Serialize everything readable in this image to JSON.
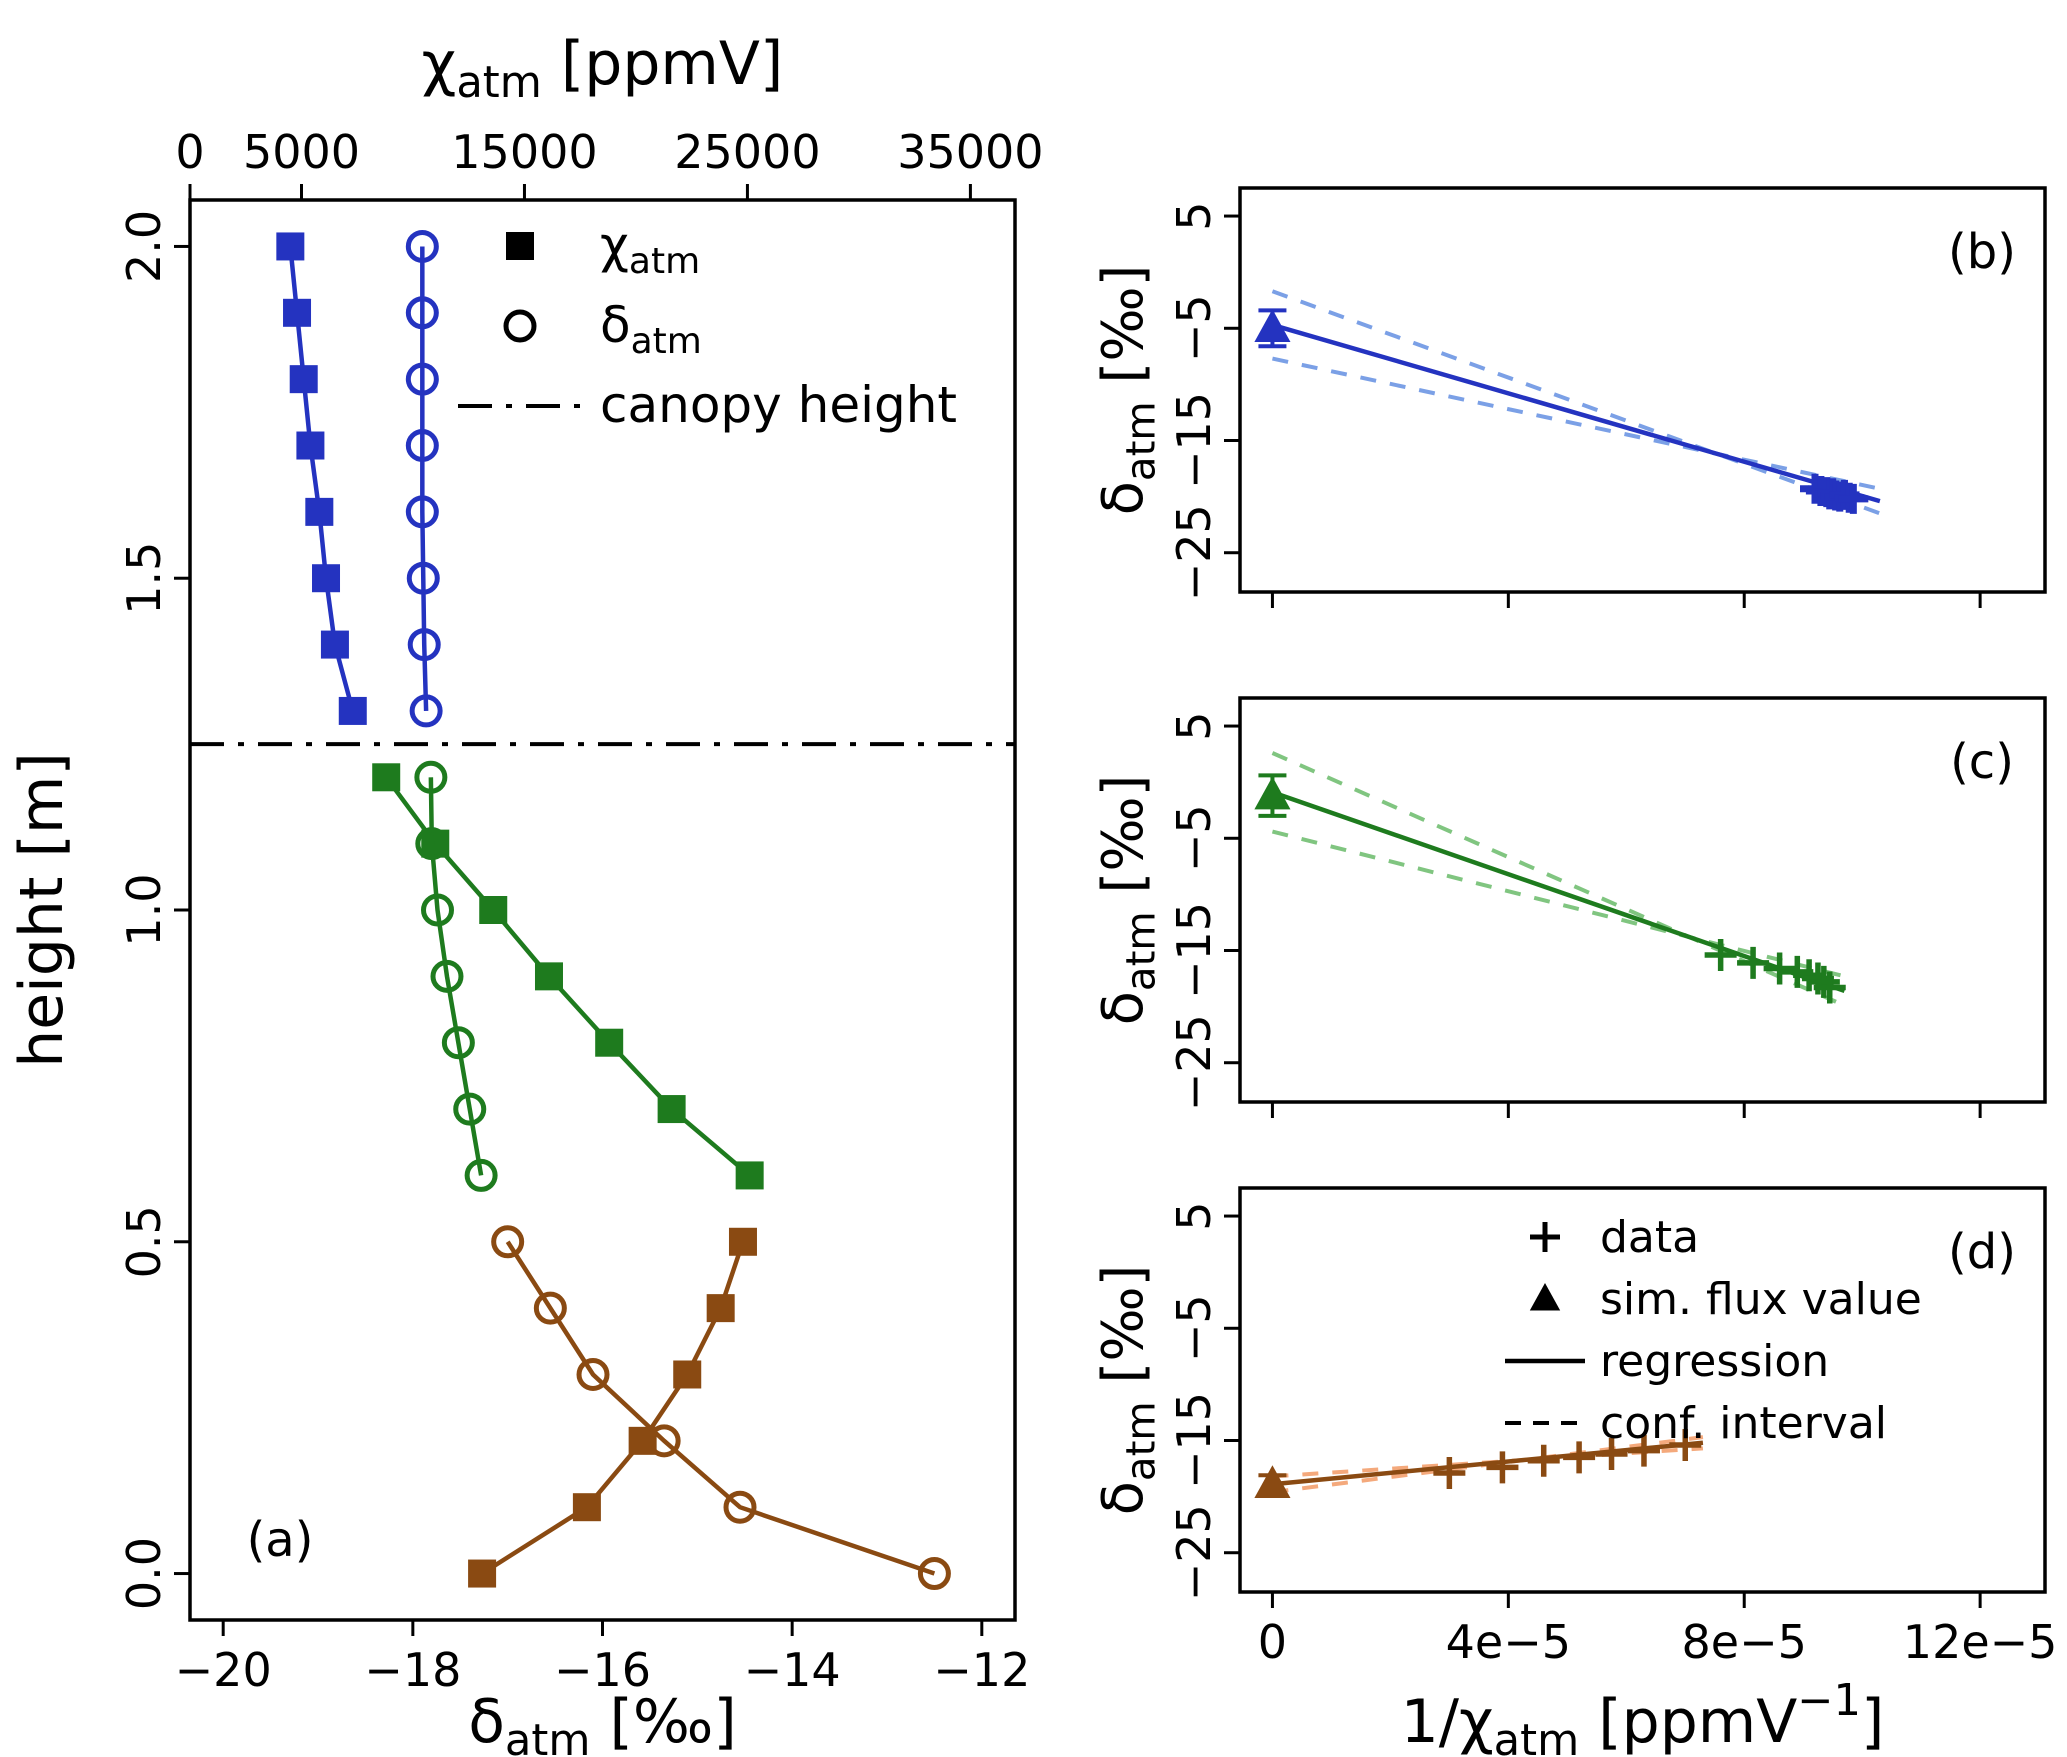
{
  "figure": {
    "background": "#ffffff",
    "colors": {
      "blue": "#2433c0",
      "blue_light": "#7ba0e6",
      "green": "#1e7b1e",
      "green_light": "#80c580",
      "brown": "#8a4a12",
      "brown_light": "#f4a97c",
      "black": "#000000"
    }
  },
  "right_axes": {
    "xlabel": [
      {
        "t": "1/"
      },
      {
        "t": "χ"
      },
      {
        "t": "atm",
        "sub": true
      },
      {
        "t": " [ppmV"
      },
      {
        "t": "−1",
        "sup": true
      },
      {
        "t": "]"
      }
    ],
    "ylabel": [
      {
        "t": "δ"
      },
      {
        "t": "atm",
        "sub": true
      },
      {
        "t": " [‰]"
      }
    ],
    "x_ticks": [
      {
        "v": 0,
        "label": "0"
      },
      {
        "v": 4e-05,
        "label": "4e−5"
      },
      {
        "v": 8e-05,
        "label": "8e−5"
      },
      {
        "v": 0.00012,
        "label": "12e−5"
      }
    ],
    "y_ticks": [
      {
        "v": 5,
        "label": "5"
      },
      {
        "v": -5,
        "label": "−5"
      },
      {
        "v": -15,
        "label": "−15"
      },
      {
        "v": -25,
        "label": "−25"
      }
    ],
    "x_range": [
      -5.5e-06,
      0.000131
    ],
    "y_range": [
      -28.5,
      7.5
    ]
  },
  "chart_data": [
    {
      "id": "a",
      "type": "line",
      "panel_label": "(a)",
      "ylabel": "height [m]",
      "xlabel_top": [
        {
          "t": "χ"
        },
        {
          "t": "atm",
          "sub": true
        },
        {
          "t": " [ppmV]"
        }
      ],
      "xlabel_bottom": [
        {
          "t": "δ"
        },
        {
          "t": "atm",
          "sub": true
        },
        {
          "t": " [‰]"
        }
      ],
      "y_ticks": [
        {
          "v": 0.0,
          "label": "0.0"
        },
        {
          "v": 0.5,
          "label": "0.5"
        },
        {
          "v": 1.0,
          "label": "1.0"
        },
        {
          "v": 1.5,
          "label": "1.5"
        },
        {
          "v": 2.0,
          "label": "2.0"
        }
      ],
      "x_top_ticks": [
        {
          "v": 0,
          "label": "0"
        },
        {
          "v": 5000,
          "label": "5000"
        },
        {
          "v": 15000,
          "label": "15000"
        },
        {
          "v": 25000,
          "label": "25000"
        },
        {
          "v": 35000,
          "label": "35000"
        }
      ],
      "x_bottom_ticks": [
        {
          "v": -20,
          "label": "−20"
        },
        {
          "v": -18,
          "label": "−18"
        },
        {
          "v": -16,
          "label": "−16"
        },
        {
          "v": -14,
          "label": "−14"
        },
        {
          "v": -12,
          "label": "−12"
        }
      ],
      "x_top_range": [
        0,
        37000
      ],
      "x_bottom_range": [
        -20.35,
        -11.65
      ],
      "y_range": [
        -0.07,
        2.07
      ],
      "canopy_height": 1.25,
      "series": [
        {
          "name": "chi-above-canopy",
          "axis": "top",
          "color": "blue",
          "marker": "square",
          "points": [
            {
              "h": 2.0,
              "v": 4500
            },
            {
              "h": 1.9,
              "v": 4800
            },
            {
              "h": 1.8,
              "v": 5100
            },
            {
              "h": 1.7,
              "v": 5400
            },
            {
              "h": 1.6,
              "v": 5800
            },
            {
              "h": 1.5,
              "v": 6100
            },
            {
              "h": 1.4,
              "v": 6500
            },
            {
              "h": 1.3,
              "v": 7300
            }
          ]
        },
        {
          "name": "delta-above-canopy",
          "axis": "bottom",
          "color": "blue",
          "marker": "circle",
          "points": [
            {
              "h": 2.0,
              "v": -17.9
            },
            {
              "h": 1.9,
              "v": -17.9
            },
            {
              "h": 1.8,
              "v": -17.9
            },
            {
              "h": 1.7,
              "v": -17.9
            },
            {
              "h": 1.6,
              "v": -17.9
            },
            {
              "h": 1.5,
              "v": -17.89
            },
            {
              "h": 1.4,
              "v": -17.88
            },
            {
              "h": 1.3,
              "v": -17.86
            }
          ]
        },
        {
          "name": "chi-within-canopy",
          "axis": "top",
          "color": "green",
          "marker": "square",
          "points": [
            {
              "h": 1.2,
              "v": 8800
            },
            {
              "h": 1.1,
              "v": 11000
            },
            {
              "h": 1.0,
              "v": 13600
            },
            {
              "h": 0.9,
              "v": 16100
            },
            {
              "h": 0.8,
              "v": 18800
            },
            {
              "h": 0.7,
              "v": 21600
            },
            {
              "h": 0.6,
              "v": 25100
            }
          ]
        },
        {
          "name": "delta-within-canopy",
          "axis": "bottom",
          "color": "green",
          "marker": "circle",
          "points": [
            {
              "h": 1.2,
              "v": -17.81
            },
            {
              "h": 1.1,
              "v": -17.8
            },
            {
              "h": 1.0,
              "v": -17.74
            },
            {
              "h": 0.9,
              "v": -17.64
            },
            {
              "h": 0.8,
              "v": -17.52
            },
            {
              "h": 0.7,
              "v": -17.4
            },
            {
              "h": 0.6,
              "v": -17.28
            }
          ]
        },
        {
          "name": "chi-below-canopy",
          "axis": "top",
          "color": "brown",
          "marker": "square",
          "points": [
            {
              "h": 0.5,
              "v": 24800
            },
            {
              "h": 0.4,
              "v": 23800
            },
            {
              "h": 0.3,
              "v": 22300
            },
            {
              "h": 0.2,
              "v": 20300
            },
            {
              "h": 0.1,
              "v": 17800
            },
            {
              "h": 0.0,
              "v": 13100
            }
          ]
        },
        {
          "name": "delta-below-canopy",
          "axis": "bottom",
          "color": "brown",
          "marker": "circle",
          "points": [
            {
              "h": 0.5,
              "v": -17.0
            },
            {
              "h": 0.4,
              "v": -16.55
            },
            {
              "h": 0.3,
              "v": -16.1
            },
            {
              "h": 0.2,
              "v": -15.35
            },
            {
              "h": 0.1,
              "v": -14.55
            },
            {
              "h": 0.0,
              "v": -12.5
            }
          ]
        }
      ],
      "legend": [
        {
          "marker": "square",
          "segments": [
            {
              "t": "χ"
            },
            {
              "t": "atm",
              "sub": true
            }
          ]
        },
        {
          "marker": "circle",
          "segments": [
            {
              "t": "δ"
            },
            {
              "t": "atm",
              "sub": true
            }
          ]
        },
        {
          "marker": "dashdot",
          "segments": [
            {
              "t": "canopy height"
            }
          ]
        }
      ]
    },
    {
      "id": "b",
      "type": "scatter",
      "panel_label": "(b)",
      "color": "blue",
      "ci_color": "blue_light",
      "data_x": [
        9.2e-05,
        9.3e-05,
        9.4e-05,
        9.45e-05,
        9.5e-05,
        9.55e-05,
        9.62e-05,
        9.7e-05,
        9.78e-05,
        9.85e-05
      ],
      "data_y": [
        -19.3,
        -19.5,
        -19.6,
        -19.8,
        -19.7,
        -19.9,
        -20.0,
        -19.85,
        -20.1,
        -20.2
      ],
      "sim_flux": {
        "x": 0,
        "y": -5.0,
        "err": 1.6
      },
      "regression": {
        "x": [
          0,
          0.000103
        ],
        "y": [
          -4.7,
          -20.4
        ]
      },
      "conf_interval": [
        {
          "x": [
            0,
            0.000103
          ],
          "y": [
            -1.7,
            -21.5
          ]
        },
        {
          "x": [
            0,
            0.000103
          ],
          "y": [
            -7.7,
            -19.3
          ]
        }
      ]
    },
    {
      "id": "c",
      "type": "scatter",
      "panel_label": "(c)",
      "color": "green",
      "ci_color": "green_light",
      "data_x": [
        7.6e-05,
        8.15e-05,
        8.6e-05,
        8.9e-05,
        9.1e-05,
        9.25e-05,
        9.35e-05,
        9.45e-05
      ],
      "data_y": [
        -15.4,
        -16.1,
        -16.6,
        -16.9,
        -17.2,
        -17.5,
        -17.8,
        -18.3
      ],
      "sim_flux": {
        "x": 0,
        "y": -1.2,
        "err": 1.8
      },
      "regression": {
        "x": [
          0,
          9.7e-05
        ],
        "y": [
          -0.9,
          -18.6
        ]
      },
      "conf_interval": [
        {
          "x": [
            0,
            9.7e-05
          ],
          "y": [
            2.6,
            -19.9
          ]
        },
        {
          "x": [
            0,
            9.7e-05
          ],
          "y": [
            -4.4,
            -17.3
          ]
        }
      ]
    },
    {
      "id": "d",
      "type": "scatter",
      "panel_label": "(d)",
      "color": "brown",
      "ci_color": "brown_light",
      "data_x": [
        3e-05,
        3.9e-05,
        4.6e-05,
        5.2e-05,
        5.75e-05,
        6.3e-05,
        7e-05
      ],
      "data_y": [
        -17.9,
        -17.4,
        -16.8,
        -16.5,
        -16.2,
        -15.9,
        -15.4
      ],
      "sim_flux": {
        "x": 0,
        "y": -18.9,
        "err": 0.8
      },
      "regression": {
        "x": [
          0,
          7.3e-05
        ],
        "y": [
          -18.9,
          -15.2
        ]
      },
      "conf_interval": [
        {
          "x": [
            0,
            7.3e-05
          ],
          "y": [
            -18.2,
            -15.7
          ]
        },
        {
          "x": [
            0,
            7.3e-05
          ],
          "y": [
            -19.6,
            -14.7
          ]
        }
      ],
      "legend": [
        {
          "marker": "plus",
          "label": "data"
        },
        {
          "marker": "triangle",
          "label": "sim. flux value"
        },
        {
          "marker": "line",
          "label": "regression"
        },
        {
          "marker": "dashed",
          "label": "conf. interval"
        }
      ]
    }
  ]
}
